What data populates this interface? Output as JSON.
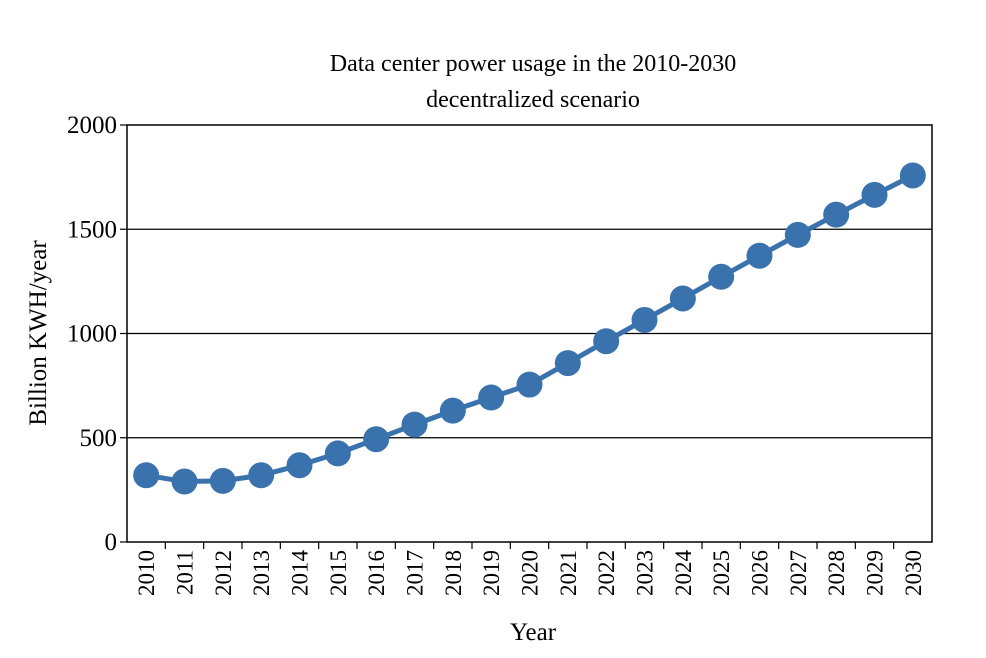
{
  "chart_data": {
    "type": "line",
    "title": [
      "Data center power usage in the 2010-2030",
      "decentralized scenario"
    ],
    "xlabel": "Year",
    "ylabel": "Billion KWH/year",
    "categories": [
      "2010",
      "2011",
      "2012",
      "2013",
      "2014",
      "2015",
      "2016",
      "2017",
      "2018",
      "2019",
      "2020",
      "2021",
      "2022",
      "2023",
      "2024",
      "2025",
      "2026",
      "2027",
      "2028",
      "2029",
      "2030"
    ],
    "series": [
      {
        "values": [
          320,
          290,
          293,
          320,
          368,
          425,
          493,
          563,
          630,
          693,
          755,
          858,
          963,
          1065,
          1168,
          1272,
          1373,
          1473,
          1570,
          1665,
          1758
        ]
      }
    ],
    "ylim": [
      0,
      2000
    ],
    "yticks": [
      0,
      500,
      1000,
      1500,
      2000
    ],
    "grid": "horizontal",
    "color": "#3a72ad"
  }
}
